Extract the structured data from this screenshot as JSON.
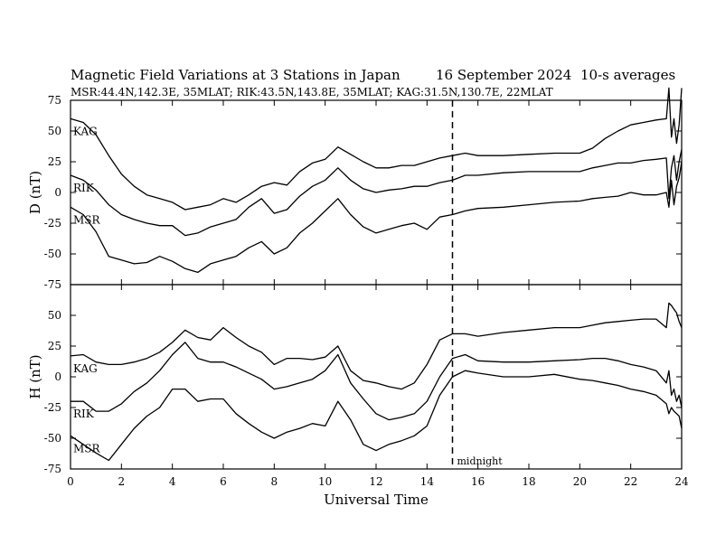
{
  "chart_data": {
    "type": "line",
    "title": "Magnetic Field Variations at 3 Stations in Japan",
    "date": "16 September 2024",
    "averaging": "10-s averages",
    "subtitle": "MSR:44.4N,142.3E, 35MLAT;  RIK:43.5N,143.8E, 35MLAT;  KAG:31.5N,130.7E, 22MLAT",
    "xlabel": "Universal Time",
    "xlim": [
      0,
      24
    ],
    "xticks": [
      "0",
      "2",
      "4",
      "6",
      "8",
      "10",
      "12",
      "14",
      "16",
      "18",
      "20",
      "22",
      "24"
    ],
    "midnight": {
      "x": 15,
      "label": "midnight"
    },
    "panels": [
      {
        "ylabel": "D (nT)",
        "ylim": [
          -75,
          75
        ],
        "yticks": [
          "75",
          "50",
          "25",
          "0",
          "-25",
          "-50",
          "-75"
        ],
        "series": [
          {
            "name": "KAG",
            "x": [
              0,
              0.5,
              1,
              1.5,
              2,
              2.5,
              3,
              3.5,
              4,
              4.5,
              5,
              5.5,
              6,
              6.5,
              7,
              7.5,
              8,
              8.5,
              9,
              9.5,
              10,
              10.5,
              11,
              11.5,
              12,
              12.5,
              13,
              13.5,
              14,
              14.5,
              15,
              15.5,
              16,
              17,
              18,
              19,
              20,
              20.5,
              21,
              21.5,
              22,
              22.5,
              23,
              23.4,
              23.5,
              23.6,
              23.7,
              23.8,
              23.9,
              24
            ],
            "values": [
              60,
              57,
              47,
              30,
              15,
              5,
              -2,
              -5,
              -8,
              -14,
              -12,
              -10,
              -5,
              -8,
              -2,
              5,
              8,
              6,
              17,
              24,
              27,
              37,
              31,
              25,
              20,
              20,
              22,
              22,
              25,
              28,
              30,
              32,
              30,
              30,
              31,
              32,
              32,
              36,
              44,
              50,
              55,
              57,
              59,
              60,
              85,
              45,
              60,
              40,
              55,
              85
            ]
          },
          {
            "name": "RIK",
            "x": [
              0,
              0.5,
              1,
              1.5,
              2,
              2.5,
              3,
              3.5,
              4,
              4.5,
              5,
              5.5,
              6,
              6.5,
              7,
              7.5,
              8,
              8.5,
              9,
              9.5,
              10,
              10.5,
              11,
              11.5,
              12,
              12.5,
              13,
              13.5,
              14,
              14.5,
              15,
              15.5,
              16,
              17,
              18,
              19,
              20,
              20.5,
              21,
              21.5,
              22,
              22.5,
              23,
              23.4,
              23.5,
              23.6,
              23.7,
              23.8,
              23.9,
              24
            ],
            "values": [
              14,
              10,
              2,
              -10,
              -18,
              -22,
              -25,
              -27,
              -27,
              -35,
              -33,
              -28,
              -25,
              -22,
              -12,
              -5,
              -17,
              -14,
              -3,
              5,
              10,
              20,
              10,
              3,
              0,
              2,
              3,
              5,
              5,
              8,
              10,
              14,
              14,
              16,
              17,
              17,
              17,
              20,
              22,
              24,
              24,
              26,
              27,
              28,
              -5,
              20,
              30,
              10,
              25,
              35
            ]
          },
          {
            "name": "MSR",
            "x": [
              0,
              0.5,
              1,
              1.5,
              2,
              2.5,
              3,
              3.5,
              4,
              4.5,
              5,
              5.5,
              6,
              6.5,
              7,
              7.5,
              8,
              8.5,
              9,
              9.5,
              10,
              10.5,
              11,
              11.5,
              12,
              12.5,
              13,
              13.5,
              14,
              14.5,
              15,
              15.5,
              16,
              17,
              18,
              19,
              20,
              20.5,
              21,
              21.5,
              22,
              22.5,
              23,
              23.4,
              23.5,
              23.6,
              23.7,
              23.8,
              23.9,
              24
            ],
            "values": [
              -12,
              -18,
              -32,
              -52,
              -55,
              -58,
              -57,
              -52,
              -56,
              -62,
              -65,
              -58,
              -55,
              -52,
              -45,
              -40,
              -50,
              -45,
              -33,
              -25,
              -15,
              -5,
              -18,
              -28,
              -33,
              -30,
              -27,
              -25,
              -30,
              -20,
              -18,
              -15,
              -13,
              -12,
              -10,
              -8,
              -7,
              -5,
              -4,
              -3,
              0,
              -2,
              -2,
              0,
              -12,
              10,
              -10,
              5,
              12,
              25
            ]
          }
        ]
      },
      {
        "ylabel": "H (nT)",
        "ylim": [
          -75,
          75
        ],
        "yticks": [
          "50",
          "25",
          "0",
          "-25",
          "-50",
          "-75"
        ],
        "series": [
          {
            "name": "KAG",
            "x": [
              0,
              0.5,
              1,
              1.5,
              2,
              2.5,
              3,
              3.5,
              4,
              4.5,
              5,
              5.5,
              6,
              6.5,
              7,
              7.5,
              8,
              8.5,
              9,
              9.5,
              10,
              10.5,
              11,
              11.5,
              12,
              12.5,
              13,
              13.5,
              14,
              14.5,
              15,
              15.5,
              16,
              17,
              18,
              19,
              20,
              20.5,
              21,
              21.5,
              22,
              22.5,
              23,
              23.4,
              23.5,
              23.6,
              23.7,
              23.8,
              23.9,
              24
            ],
            "values": [
              17,
              18,
              12,
              10,
              10,
              12,
              15,
              20,
              28,
              38,
              32,
              30,
              40,
              32,
              25,
              20,
              10,
              15,
              15,
              14,
              16,
              25,
              5,
              -3,
              -5,
              -8,
              -10,
              -5,
              10,
              30,
              35,
              35,
              33,
              36,
              38,
              40,
              40,
              42,
              44,
              45,
              46,
              47,
              47,
              40,
              60,
              58,
              55,
              52,
              45,
              40
            ]
          },
          {
            "name": "RIK",
            "x": [
              0,
              0.5,
              1,
              1.5,
              2,
              2.5,
              3,
              3.5,
              4,
              4.5,
              5,
              5.5,
              6,
              6.5,
              7,
              7.5,
              8,
              8.5,
              9,
              9.5,
              10,
              10.5,
              11,
              11.5,
              12,
              12.5,
              13,
              13.5,
              14,
              14.5,
              15,
              15.5,
              16,
              17,
              18,
              19,
              20,
              20.5,
              21,
              21.5,
              22,
              22.5,
              23,
              23.4,
              23.5,
              23.6,
              23.7,
              23.8,
              23.9,
              24
            ],
            "values": [
              -20,
              -20,
              -28,
              -28,
              -22,
              -12,
              -5,
              5,
              18,
              28,
              15,
              12,
              12,
              8,
              3,
              -2,
              -10,
              -8,
              -5,
              -2,
              5,
              18,
              -5,
              -18,
              -30,
              -35,
              -33,
              -30,
              -20,
              0,
              15,
              18,
              13,
              12,
              12,
              13,
              14,
              15,
              15,
              13,
              10,
              8,
              5,
              -5,
              5,
              -15,
              -10,
              -20,
              -15,
              -25
            ]
          },
          {
            "name": "MSR",
            "x": [
              0,
              0.5,
              1,
              1.5,
              2,
              2.5,
              3,
              3.5,
              4,
              4.5,
              5,
              5.5,
              6,
              6.5,
              7,
              7.5,
              8,
              8.5,
              9,
              9.5,
              10,
              10.5,
              11,
              11.5,
              12,
              12.5,
              13,
              13.5,
              14,
              14.5,
              15,
              15.5,
              16,
              17,
              18,
              19,
              20,
              20.5,
              21,
              21.5,
              22,
              22.5,
              23,
              23.4,
              23.5,
              23.6,
              23.7,
              23.8,
              23.9,
              24
            ],
            "values": [
              -48,
              -55,
              -62,
              -68,
              -55,
              -42,
              -32,
              -25,
              -10,
              -10,
              -20,
              -18,
              -18,
              -30,
              -38,
              -45,
              -50,
              -45,
              -42,
              -38,
              -40,
              -20,
              -35,
              -55,
              -60,
              -55,
              -52,
              -48,
              -40,
              -15,
              0,
              5,
              3,
              0,
              0,
              2,
              -2,
              -3,
              -5,
              -7,
              -10,
              -12,
              -15,
              -22,
              -30,
              -25,
              -28,
              -30,
              -32,
              -42
            ]
          }
        ]
      }
    ]
  }
}
